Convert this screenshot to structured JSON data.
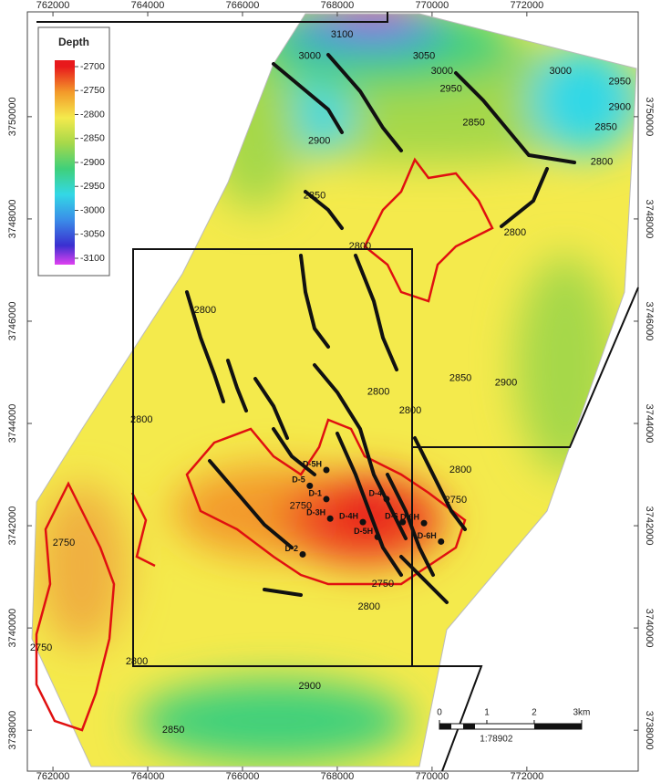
{
  "map": {
    "xlim": [
      761460,
      774350
    ],
    "ylim": [
      3737200,
      3752050
    ],
    "xticks": [
      762000,
      764000,
      766000,
      768000,
      770000,
      772000
    ],
    "yticks": [
      3738000,
      3740000,
      3742000,
      3744000,
      3746000,
      3748000,
      3750000
    ],
    "legend": {
      "title": "Depth",
      "ticks": [
        -2700,
        -2750,
        -2800,
        -2850,
        -2900,
        -2950,
        -3000,
        -3050,
        -3100
      ],
      "colors": [
        {
          "value": -2700,
          "color": "#e8191c"
        },
        {
          "value": -2750,
          "color": "#f39a2a"
        },
        {
          "value": -2800,
          "color": "#f4ea4c"
        },
        {
          "value": -2850,
          "color": "#a6d84a"
        },
        {
          "value": -2900,
          "color": "#3fd07a"
        },
        {
          "value": -2950,
          "color": "#33d8e6"
        },
        {
          "value": -3000,
          "color": "#3a8de8"
        },
        {
          "value": -3050,
          "color": "#3a2fd0"
        },
        {
          "value": -3100,
          "color": "#e040f0"
        }
      ]
    },
    "contour_labels": [
      {
        "label": "3100",
        "easting": 768100,
        "northing": 3751600
      },
      {
        "label": "3050",
        "easting": 769830,
        "northing": 3751180
      },
      {
        "label": "3000",
        "easting": 767420,
        "northing": 3751180
      },
      {
        "label": "3000",
        "easting": 770210,
        "northing": 3750890
      },
      {
        "label": "3000",
        "easting": 772710,
        "northing": 3750890
      },
      {
        "label": "2950",
        "easting": 770400,
        "northing": 3750540
      },
      {
        "label": "2950",
        "easting": 773960,
        "northing": 3750680
      },
      {
        "label": "2900",
        "easting": 767620,
        "northing": 3749520
      },
      {
        "label": "2900",
        "easting": 773960,
        "northing": 3750180
      },
      {
        "label": "2850",
        "easting": 770880,
        "northing": 3749880
      },
      {
        "label": "2850",
        "easting": 773670,
        "northing": 3749790
      },
      {
        "label": "2850",
        "easting": 767520,
        "northing": 3748450
      },
      {
        "label": "2800",
        "easting": 773580,
        "northing": 3749110
      },
      {
        "label": "2800",
        "easting": 771750,
        "northing": 3747730
      },
      {
        "label": "2800",
        "easting": 768480,
        "northing": 3747460
      },
      {
        "label": "2800",
        "easting": 765210,
        "northing": 3746210
      },
      {
        "label": "2800",
        "easting": 769540,
        "northing": 3744250
      },
      {
        "label": "2800",
        "easting": 768870,
        "northing": 3744610
      },
      {
        "label": "2800",
        "easting": 763870,
        "northing": 3744070
      },
      {
        "label": "2800",
        "easting": 770600,
        "northing": 3743090
      },
      {
        "label": "2850",
        "easting": 770600,
        "northing": 3744880
      },
      {
        "label": "2900",
        "easting": 771560,
        "northing": 3744790
      },
      {
        "label": "2750",
        "easting": 762230,
        "northing": 3741660
      },
      {
        "label": "2750",
        "easting": 761750,
        "northing": 3739610
      },
      {
        "label": "2750",
        "easting": 767230,
        "northing": 3742380
      },
      {
        "label": "2750",
        "easting": 768960,
        "northing": 3740860
      },
      {
        "label": "2800",
        "easting": 768670,
        "northing": 3740410
      },
      {
        "label": "2900",
        "easting": 767420,
        "northing": 3738860
      },
      {
        "label": "2850",
        "easting": 764540,
        "northing": 3738000
      },
      {
        "label": "2800",
        "easting": 763770,
        "northing": 3739340
      },
      {
        "label": "2750",
        "easting": 770500,
        "northing": 3742500
      }
    ],
    "wells": [
      {
        "name": "D-5H",
        "easting": 767770,
        "northing": 3743090
      },
      {
        "name": "D-5",
        "easting": 767420,
        "northing": 3742780
      },
      {
        "name": "D-1",
        "easting": 767770,
        "northing": 3742520
      },
      {
        "name": "D-3H",
        "easting": 767850,
        "northing": 3742140
      },
      {
        "name": "D-4",
        "easting": 769040,
        "northing": 3742520
      },
      {
        "name": "D-4H",
        "easting": 768540,
        "northing": 3742070
      },
      {
        "name": "D-5H",
        "easting": 768850,
        "northing": 3741780
      },
      {
        "name": "D-6",
        "easting": 769380,
        "northing": 3742070
      },
      {
        "name": "D-6H",
        "easting": 769830,
        "northing": 3742050
      },
      {
        "name": "D-6H",
        "easting": 770190,
        "northing": 3741690
      },
      {
        "name": "D-2",
        "easting": 767270,
        "northing": 3741440
      }
    ],
    "scale_bar": {
      "ticks": [
        {
          "value": 0,
          "label": "0"
        },
        {
          "value": 1,
          "label": "1"
        },
        {
          "value": 2,
          "label": "2"
        },
        {
          "value": 3,
          "label": "3km"
        }
      ],
      "ratio": "1:78902"
    }
  }
}
